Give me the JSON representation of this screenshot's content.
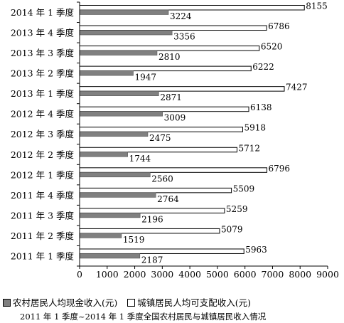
{
  "chart_data": {
    "type": "bar",
    "orientation": "horizontal",
    "categories": [
      "2014 年 1 季度",
      "2013 年 4 季度",
      "2013 年 3 季度",
      "2013 年 2 季度",
      "2013 年 1 季度",
      "2012 年 4 季度",
      "2012 年 3 季度",
      "2012 年 2 季度",
      "2012 年 1 季度",
      "2011 年 4 季度",
      "2011 年 3 季度",
      "2011 年 2 季度",
      "2011 年 1 季度"
    ],
    "series": [
      {
        "name": "城镇居民人均可支配收入(元)",
        "color": "#ffffff",
        "values": [
          8155,
          6786,
          6520,
          6222,
          7427,
          6138,
          5918,
          5712,
          6796,
          5509,
          5259,
          5079,
          5963
        ]
      },
      {
        "name": "农村居民人均现金收入(元)",
        "color": "#808080",
        "values": [
          3224,
          3356,
          2810,
          1947,
          2871,
          3009,
          2475,
          1744,
          2560,
          2764,
          2196,
          1519,
          2187
        ]
      }
    ],
    "xlim": [
      0,
      9000
    ],
    "xticks": [
      "0",
      "1000",
      "2000",
      "3000",
      "4000",
      "5000",
      "6000",
      "7000",
      "8000",
      "9000"
    ],
    "grid": false,
    "legend": {
      "position": "bottom",
      "items": [
        {
          "label": "农村居民人均现金收入(元)",
          "color": "#808080"
        },
        {
          "label": "城镇居民人均可支配收入(元)",
          "color": "#ffffff"
        }
      ]
    },
    "caption": "2011 年 1 季度~2014 年 1 季度全国农村居民与城镇居民收入情况"
  }
}
